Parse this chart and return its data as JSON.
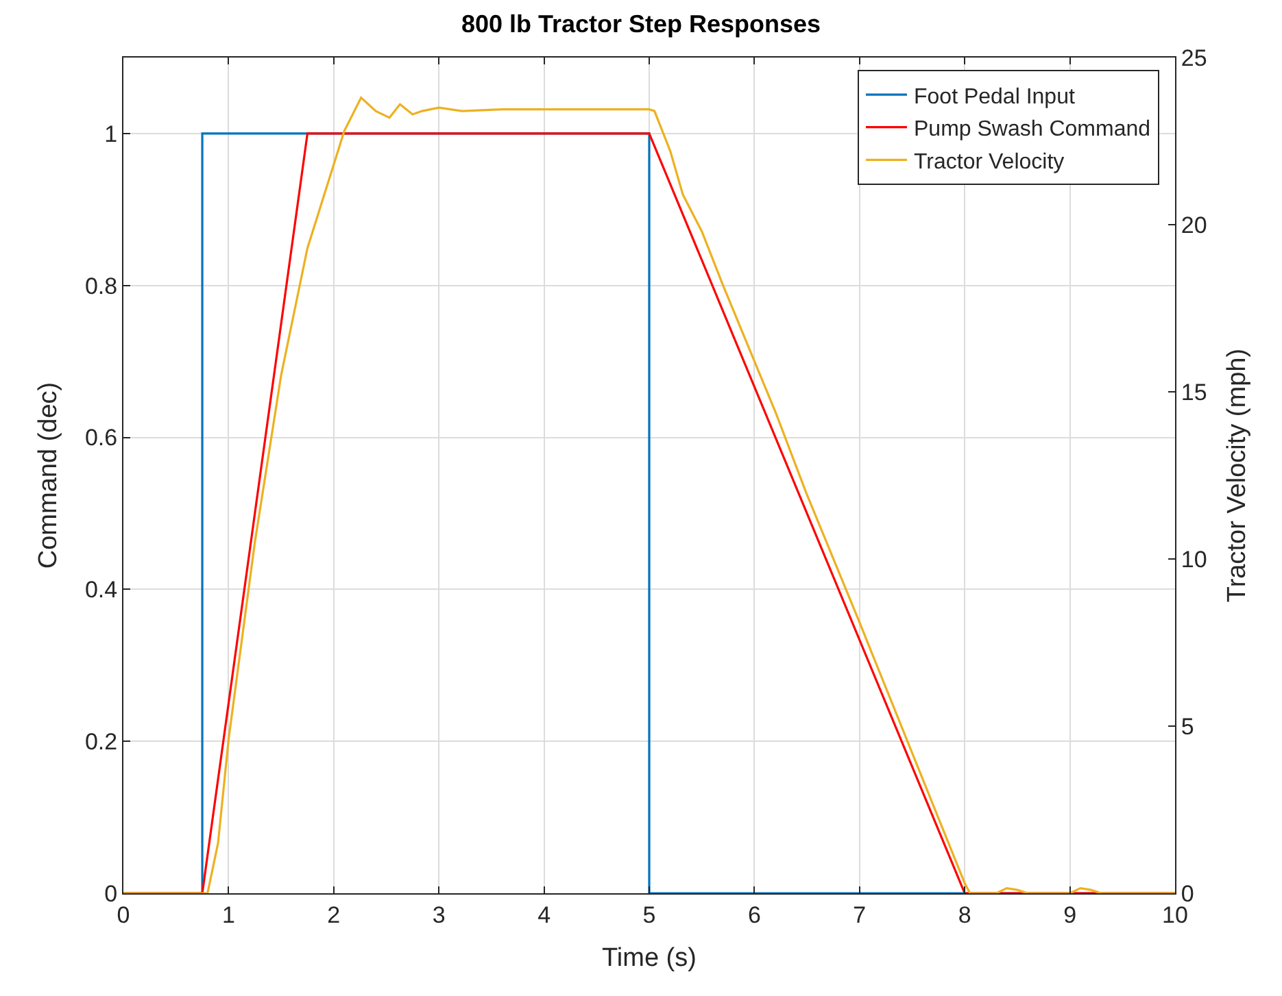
{
  "chart_data": {
    "type": "line",
    "title": "800 lb Tractor Step Responses",
    "xlabel": "Time (s)",
    "ylabel": "Command (dec)",
    "y2label": "Tractor Velocity (mph)",
    "xlim": [
      0,
      10
    ],
    "xticks": [
      0,
      1,
      2,
      3,
      4,
      5,
      6,
      7,
      8,
      9,
      10
    ],
    "ylim": [
      0,
      1.1
    ],
    "yticks": [
      0,
      0.2,
      0.4,
      0.6,
      0.8,
      1
    ],
    "y2lim": [
      0,
      25
    ],
    "y2ticks": [
      0,
      5,
      10,
      15,
      20,
      25
    ],
    "grid": true,
    "legend": "top right",
    "marker": "none",
    "line_style": "solid",
    "series": [
      {
        "name": "Foot Pedal Input",
        "color": "#0072bd",
        "x": [
          0,
          0.75,
          0.75,
          5,
          5,
          10
        ],
        "values": [
          0,
          0,
          1,
          1,
          0,
          0
        ]
      },
      {
        "name": "Pump Swash Command",
        "color": "#ff0000",
        "x": [
          0,
          0.75,
          1.75,
          5,
          8,
          10
        ],
        "values": [
          0,
          0,
          1,
          1,
          0,
          0
        ]
      },
      {
        "name": "Tractor Velocity",
        "color": "#edb120",
        "axis": "y2",
        "x": [
          0,
          0.8,
          0.9,
          1.0,
          1.25,
          1.5,
          1.75,
          2.0,
          2.1,
          2.26,
          2.4,
          2.53,
          2.63,
          2.75,
          2.84,
          3.0,
          3.22,
          3.6,
          4.0,
          4.5,
          5.0,
          5.05,
          5.1,
          5.2,
          5.32,
          5.5,
          5.7,
          5.91,
          6.2,
          6.49,
          7.0,
          7.5,
          8.0,
          8.05,
          8.3,
          8.4,
          8.5,
          8.6,
          9.0,
          9.1,
          9.2,
          9.3,
          10
        ],
        "values": [
          0,
          0,
          1.5,
          4.6,
          10.5,
          15.5,
          19.3,
          21.8,
          22.8,
          23.8,
          23.4,
          23.2,
          23.6,
          23.3,
          23.4,
          23.5,
          23.4,
          23.45,
          23.45,
          23.45,
          23.45,
          23.4,
          23.0,
          22.2,
          20.9,
          19.8,
          18.2,
          16.6,
          14.4,
          12.0,
          8.1,
          4.2,
          0.3,
          0,
          0,
          0.15,
          0.1,
          0,
          0,
          0.15,
          0.1,
          0,
          0
        ]
      }
    ]
  }
}
